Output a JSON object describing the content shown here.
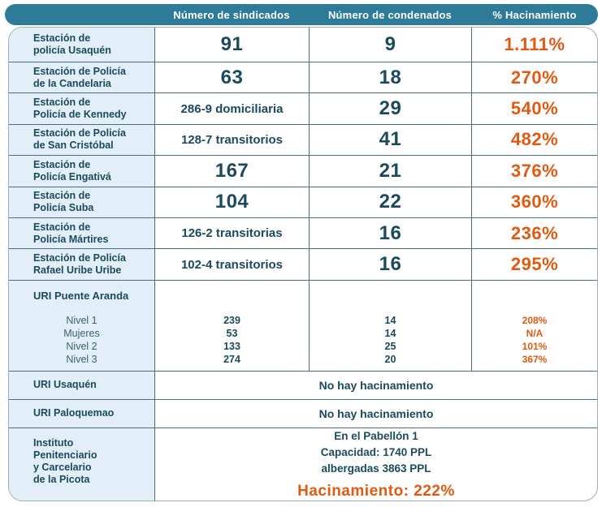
{
  "title": "Tabla de hacinamiento en estaciones de policía y URI de Bogotá",
  "colors": {
    "header_bg": "#2e7b99",
    "label_bg": "#e2eff8",
    "ink": "#1b4a5c",
    "accent": "#e05a12",
    "grid": "#4e6d7b",
    "outer_border": "#9cafb9",
    "sublabel": "#38626f"
  },
  "header": {
    "columns": [
      "Número de sindicados",
      "Número de condenados",
      "% Hacinamiento"
    ]
  },
  "stations": [
    {
      "label": "Estación de\npolicía Usaquén",
      "sindicados": "91",
      "condenados": "9",
      "hacinamiento": "1.111%"
    },
    {
      "label": "Estación de Policía\nde la Candelaria",
      "sindicados": "63",
      "condenados": "18",
      "hacinamiento": "270%"
    },
    {
      "label": "Estación de\nPolicía de Kennedy",
      "sindicados": "286-9 domiciliaria",
      "condenados": "29",
      "hacinamiento": "540%"
    },
    {
      "label": "Estación de Policía\nde San Cristóbal",
      "sindicados": "128-7 transitorios",
      "condenados": "41",
      "hacinamiento": "482%"
    },
    {
      "label": "Estación de\nPolicía Engativá",
      "sindicados": "167",
      "condenados": "21",
      "hacinamiento": "376%"
    },
    {
      "label": "Estación de\nPolicía Suba",
      "sindicados": "104",
      "condenados": "22",
      "hacinamiento": "360%"
    },
    {
      "label": "Estación de\nPolicía Mártires",
      "sindicados": "126-2 transitorias",
      "condenados": "16",
      "hacinamiento": "236%"
    },
    {
      "label": "Estación de Policía\nRafael Uribe Uribe",
      "sindicados": "102-4 transitorios",
      "condenados": "16",
      "hacinamiento": "295%"
    }
  ],
  "uri_puente_aranda": {
    "title": "URI Puente Aranda",
    "rows": [
      {
        "label": "Nivel 1",
        "sindicados": "239",
        "condenados": "14",
        "hacinamiento": "208%"
      },
      {
        "label": "Mujeres",
        "sindicados": "53",
        "condenados": "14",
        "hacinamiento": "N/A"
      },
      {
        "label": "Nivel 2",
        "sindicados": "133",
        "condenados": "25",
        "hacinamiento": "101%"
      },
      {
        "label": "Nivel 3",
        "sindicados": "274",
        "condenados": "20",
        "hacinamiento": "367%"
      }
    ]
  },
  "uri_usaquen": {
    "label": "URI Usaquén",
    "value": "No hay hacinamiento"
  },
  "uri_paloquemao": {
    "label": "URI Paloquemao",
    "value": "No hay hacinamiento"
  },
  "instituto": {
    "label": "Instituto\nPenitenciario\ny Carcelario\nde la Picota",
    "lines": [
      "En el Pabellón 1",
      "Capacidad: 1740 PPL",
      "albergadas 3863 PPL"
    ],
    "highlight": "Hacinamiento: 222%"
  },
  "chart_data": {
    "type": "table",
    "columns": [
      "",
      "Número de sindicados",
      "Número de condenados",
      "% Hacinamiento"
    ],
    "rows": [
      [
        "Estación de policía Usaquén",
        "91",
        "9",
        "1.111%"
      ],
      [
        "Estación de Policía de la Candelaria",
        "63",
        "18",
        "270%"
      ],
      [
        "Estación de Policía de Kennedy",
        "286-9 domiciliaria",
        "29",
        "540%"
      ],
      [
        "Estación de Policía de San Cristóbal",
        "128-7 transitorios",
        "41",
        "482%"
      ],
      [
        "Estación de Policía Engativá",
        "167",
        "21",
        "376%"
      ],
      [
        "Estación de Policía Suba",
        "104",
        "22",
        "360%"
      ],
      [
        "Estación de Policía Mártires",
        "126-2 transitorias",
        "16",
        "236%"
      ],
      [
        "Estación de Policía Rafael Uribe Uribe",
        "102-4 transitorios",
        "16",
        "295%"
      ],
      [
        "URI Puente Aranda - Nivel 1",
        "239",
        "14",
        "208%"
      ],
      [
        "URI Puente Aranda - Mujeres",
        "53",
        "14",
        "N/A"
      ],
      [
        "URI Puente Aranda - Nivel 2",
        "133",
        "25",
        "101%"
      ],
      [
        "URI Puente Aranda - Nivel 3",
        "274",
        "20",
        "367%"
      ],
      [
        "URI Usaquén",
        "No hay hacinamiento",
        "",
        ""
      ],
      [
        "URI Paloquemao",
        "No hay hacinamiento",
        "",
        ""
      ],
      [
        "Instituto Penitenciario y Carcelario de la Picota",
        "En el Pabellón 1 / Capacidad: 1740 PPL / albergadas 3863 PPL / Hacinamiento: 222%",
        "",
        ""
      ]
    ]
  }
}
